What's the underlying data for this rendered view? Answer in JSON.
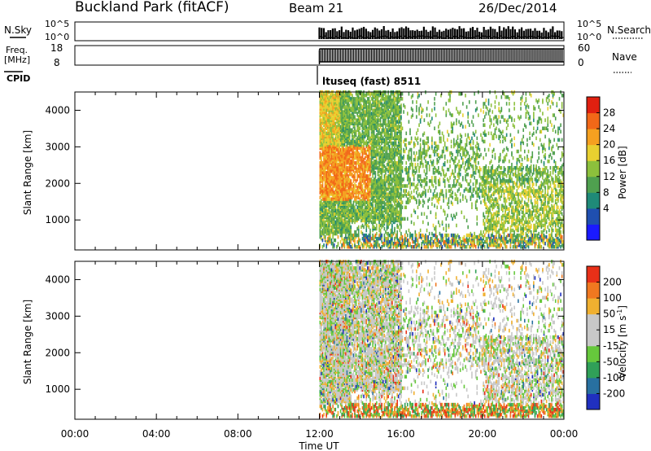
{
  "header": {
    "site": "Buckland Park (fitACF)",
    "beam": "Beam 21",
    "date": "26/Dec/2014"
  },
  "noise_panel": {
    "left_label": "N.Sky",
    "right_label": "N.Search",
    "left_ticks": [
      "10^5",
      "10^0"
    ],
    "right_ticks": [
      "10^5",
      "10^0"
    ]
  },
  "freq_panel": {
    "left_label_1": "Freq.",
    "left_label_2": "[MHz]",
    "right_label": "Nave",
    "left_ticks": [
      "18",
      "8"
    ],
    "right_ticks": [
      "60",
      "0"
    ]
  },
  "cpid": {
    "label": "CPID",
    "program": "ltuseq (fast) 8511"
  },
  "chart_data": [
    {
      "type": "heatmap",
      "name": "power",
      "ylabel": "Slant Range [km]",
      "yticks": [
        1000,
        2000,
        3000,
        4000
      ],
      "ylim": [
        180,
        4500
      ],
      "colorbar_label": "Power [dB]",
      "colorbar_ticks": [
        "28",
        "24",
        "20",
        "16",
        "12",
        "8",
        "4"
      ],
      "colors": [
        "#1a1aff",
        "#1f4fb0",
        "#1f8a78",
        "#4fa04f",
        "#8cc03c",
        "#e8d030",
        "#f5a020",
        "#f26818",
        "#e02010"
      ]
    },
    {
      "type": "heatmap",
      "name": "velocity",
      "ylabel": "Slant Range [km]",
      "yticks": [
        1000,
        2000,
        3000,
        4000
      ],
      "ylim": [
        180,
        4500
      ],
      "colorbar_label": "Velocity [m s",
      "colorbar_label_sup": "-1",
      "colorbar_label_end": "]",
      "colorbar_ticks": [
        "200",
        "100",
        "50",
        "15",
        "-15",
        "-50",
        "-100",
        "-200"
      ],
      "colors": [
        "#2030c0",
        "#2870a0",
        "#30a058",
        "#66c83c",
        "#c8c8c8",
        "#c8c8c8",
        "#f0b030",
        "#f07820",
        "#e83018"
      ]
    }
  ],
  "time_axis": {
    "ticks": [
      "00:00",
      "04:00",
      "08:00",
      "12:00",
      "16:00",
      "20:00",
      "00:00"
    ],
    "label": "Time UT"
  }
}
